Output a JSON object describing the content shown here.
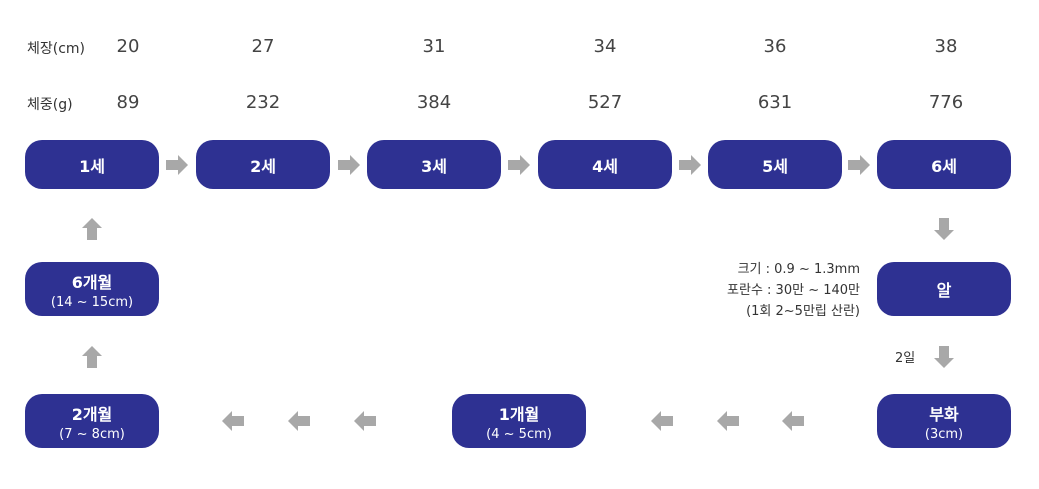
{
  "length": {
    "label": "체장(cm)",
    "values": [
      20,
      27,
      31,
      34,
      36,
      38
    ]
  },
  "weight": {
    "label": "체중(g)",
    "values": [
      89,
      232,
      384,
      527,
      631,
      776
    ]
  },
  "ages": [
    "1세",
    "2세",
    "3세",
    "4세",
    "5세",
    "6세"
  ],
  "egg": {
    "label": "알",
    "info": [
      "크기 : 0.9 ~ 1.3mm",
      "포란수 : 30만 ~ 140만",
      "(1회 2~5만립 산란)"
    ]
  },
  "incubation": "2일",
  "hatch": {
    "label": "부화",
    "size": "(3cm)"
  },
  "month1": {
    "label": "1개월",
    "size": "(4 ~ 5cm)"
  },
  "month2": {
    "label": "2개월",
    "size": "(7 ~ 8cm)"
  },
  "month6": {
    "label": "6개월",
    "size": "(14 ~ 15cm)"
  }
}
